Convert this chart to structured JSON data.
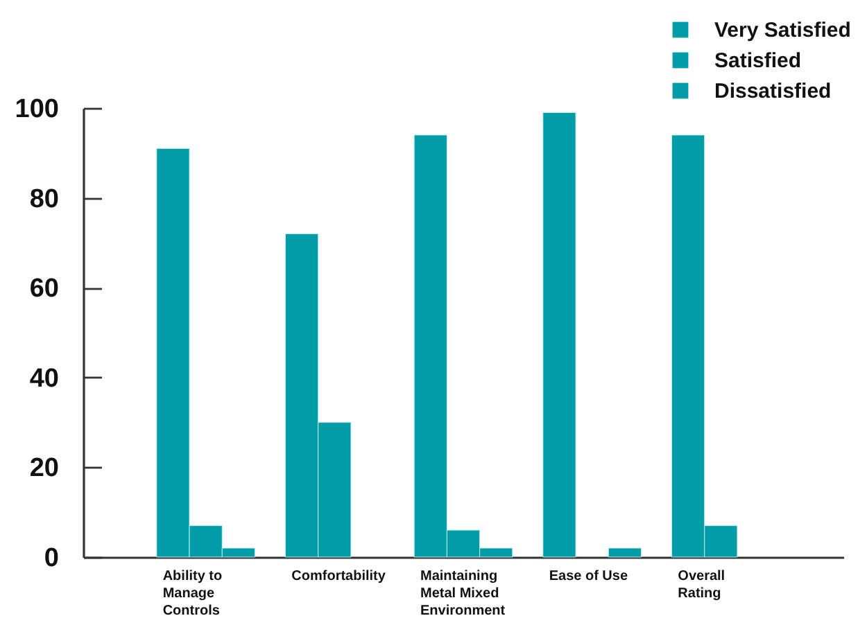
{
  "chart_data": {
    "type": "bar",
    "categories": [
      "Ability to Manage Controls",
      "Comfortability",
      "Maintaining Metal Mixed Environment",
      "Ease of Use",
      "Overall Rating"
    ],
    "series": [
      {
        "name": "Very Satisfied",
        "color": "#009ca8",
        "values": [
          91,
          72,
          94,
          99,
          94
        ]
      },
      {
        "name": "Satisfied",
        "color": "#009ca8",
        "values": [
          7,
          30,
          6,
          null,
          7
        ]
      },
      {
        "name": "Dissatisfied",
        "color": "#009ca8",
        "values": [
          2,
          null,
          2,
          2,
          null
        ]
      }
    ],
    "ylim": [
      0,
      100
    ],
    "yticks": [
      0,
      20,
      40,
      60,
      80,
      100
    ],
    "legend": "top right"
  }
}
